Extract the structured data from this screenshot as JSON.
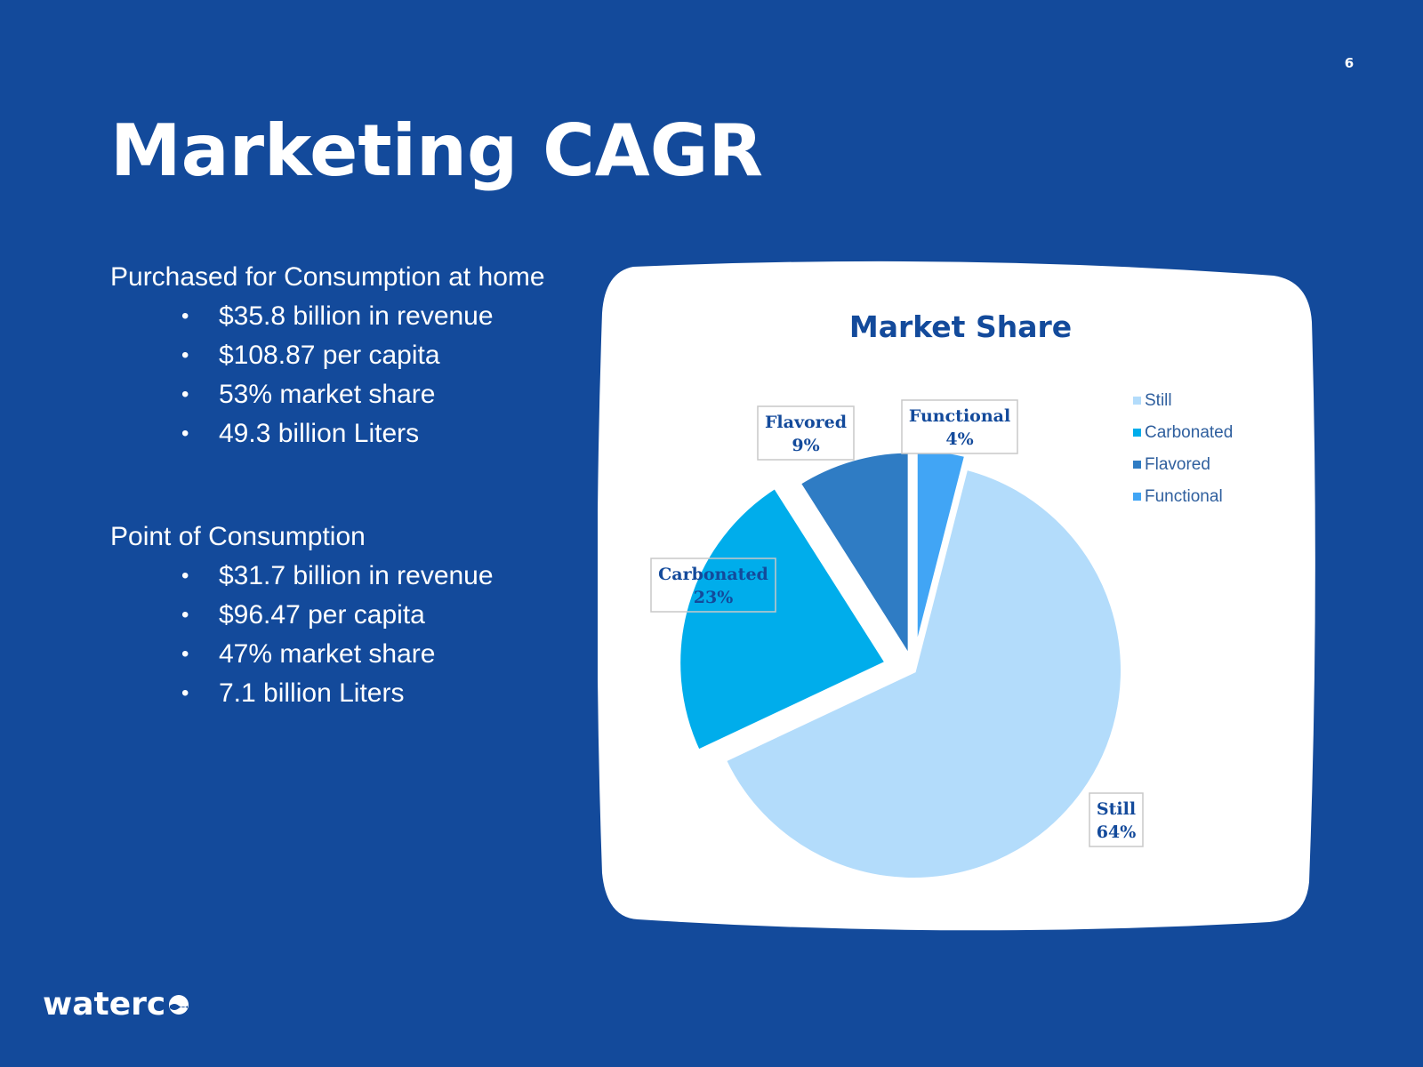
{
  "page": {
    "number": "6",
    "title": "Marketing CAGR"
  },
  "home_block": {
    "heading": "Purchased for Consumption at home",
    "bullets": [
      "$35.8 billion in revenue",
      "$108.87 per capita",
      "53% market share",
      "49.3 billion Liters"
    ]
  },
  "point_block": {
    "heading": "Point of Consumption",
    "bullets": [
      "$31.7 billion in revenue",
      "$96.47 per capita",
      "47% market share",
      "7.1 billion Liters"
    ]
  },
  "bullet_glyph": "•",
  "logo": {
    "text": "waterc",
    "icon": "water-wave-o-icon"
  },
  "colors": {
    "background": "#134a9b",
    "card": "#ffffff",
    "title_dark": "#134a9b",
    "still": "#b3dcfb",
    "carbonated": "#00adeb",
    "flavored": "#2f7cc4",
    "functional": "#41a5f5"
  },
  "chart_data": {
    "type": "pie",
    "title": "Market Share",
    "exploded": true,
    "legend_position": "top-right",
    "slices": [
      {
        "name": "Still",
        "value": 64,
        "label": "64%",
        "color": "#b3dcfb"
      },
      {
        "name": "Carbonated",
        "value": 23,
        "label": "23%",
        "color": "#00adeb"
      },
      {
        "name": "Flavored",
        "value": 9,
        "label": "9%",
        "color": "#2f7cc4"
      },
      {
        "name": "Functional",
        "value": 4,
        "label": "4%",
        "color": "#41a5f5"
      }
    ]
  }
}
